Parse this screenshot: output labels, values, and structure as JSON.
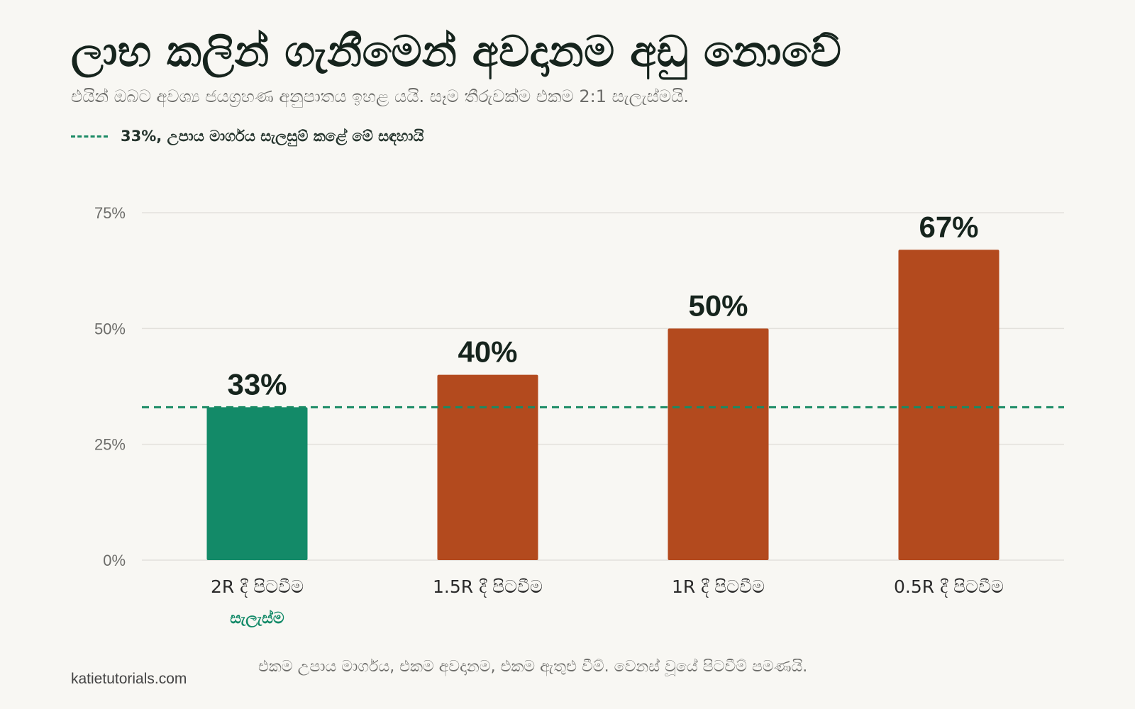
{
  "title": "ලාභ කලින් ගැනීමෙන් අවදානම අඩු නොවේ",
  "subtitle": "එයින් ඔබට අවශ්‍ය ජයග්‍රහණ අනුපාතය ඉහළ යයි. සෑම තීරුවක්ම එකම 2:1 සැලැස්මයි.",
  "legend": {
    "label": "33%, උපාය මාර්ගය සැලසුම් කළේ මේ සඳහායි"
  },
  "colors": {
    "plan": "#138a68",
    "exit_early": "#b34a1e",
    "reference_line": "#1a8a64",
    "grid": "#e3e1dc"
  },
  "chart_data": {
    "type": "bar",
    "categories": [
      "2R දී පිටවීම",
      "1.5R දී පිටවීම",
      "1R දී පිටවීම",
      "0.5R දී පිටවීම"
    ],
    "sublabels": [
      "සැලැස්ම",
      "",
      "",
      ""
    ],
    "values": [
      33,
      40,
      50,
      67
    ],
    "value_labels": [
      "33%",
      "40%",
      "50%",
      "67%"
    ],
    "highlight_index": 0,
    "ylim": [
      0,
      75
    ],
    "yticks": [
      0,
      25,
      50,
      75
    ],
    "ytick_labels": [
      "0%",
      "25%",
      "50%",
      "75%"
    ],
    "reference_line": 33,
    "grid": true
  },
  "footer": {
    "credit": "katietutorials.com",
    "note": "එකම උපාය මාර්ගය, එකම අවදානම, එකම ඇතුළු වීම්. වෙනස් වූයේ පිටවීම් පමණයි."
  }
}
